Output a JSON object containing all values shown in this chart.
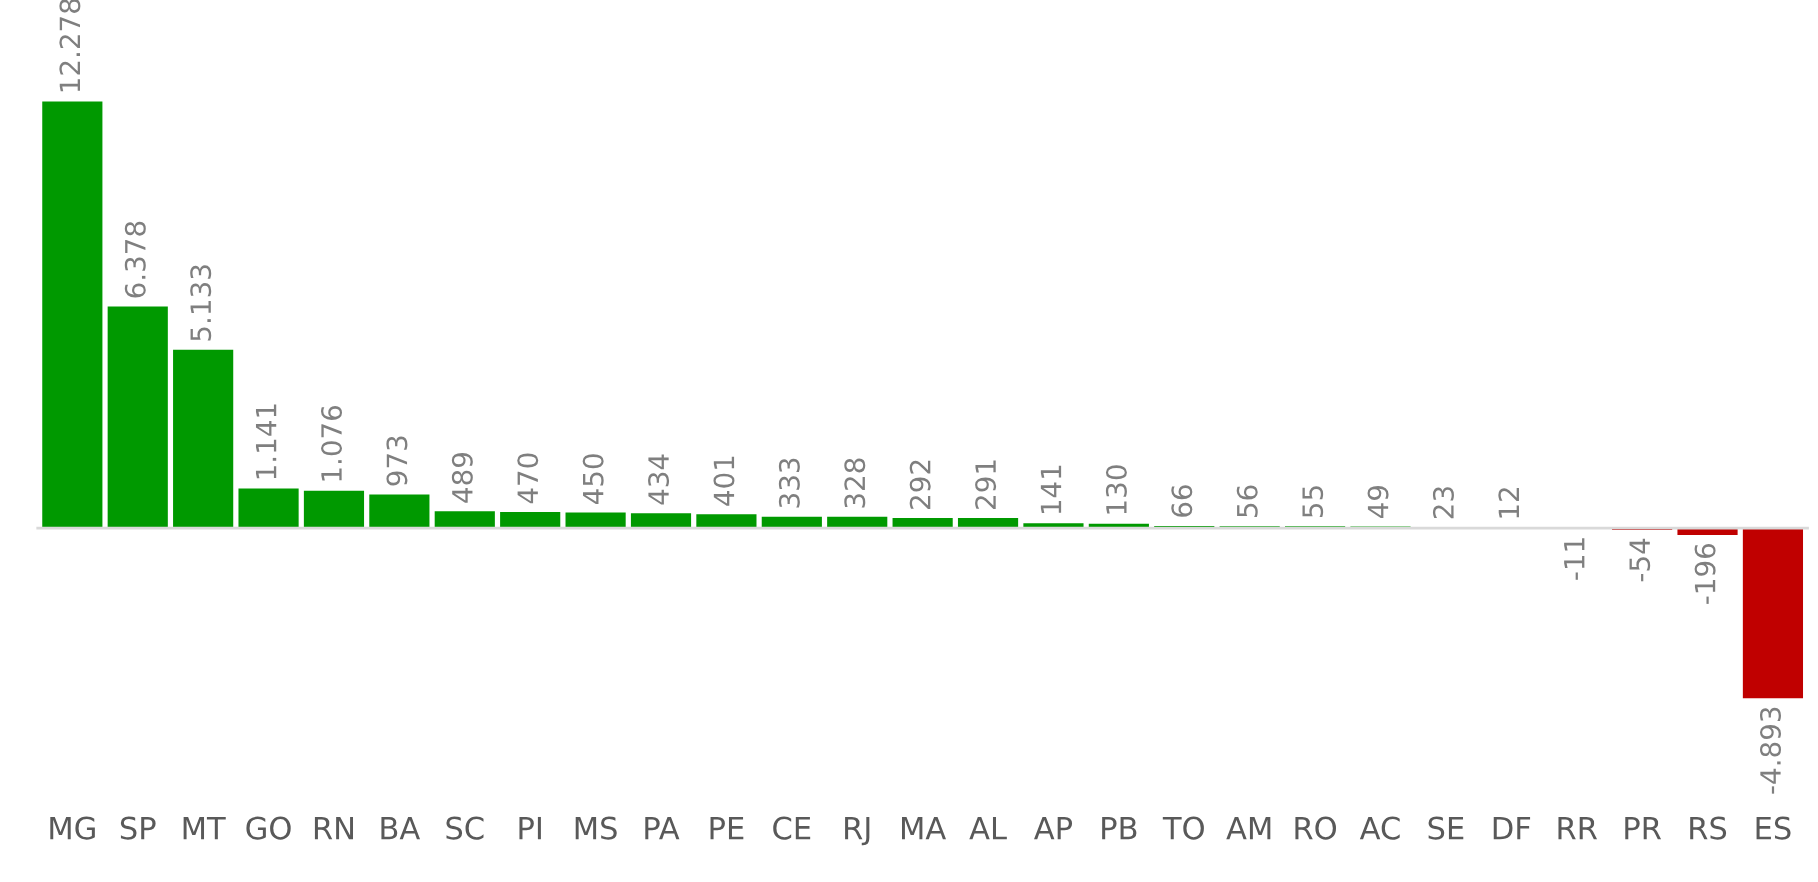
{
  "chart_data": {
    "type": "bar",
    "categories": [
      "MG",
      "SP",
      "MT",
      "GO",
      "RN",
      "BA",
      "SC",
      "PI",
      "MS",
      "PA",
      "PE",
      "CE",
      "RJ",
      "MA",
      "AL",
      "AP",
      "PB",
      "TO",
      "AM",
      "RO",
      "AC",
      "SE",
      "DF",
      "RR",
      "PR",
      "RS",
      "ES"
    ],
    "values": [
      12278,
      6378,
      5133,
      1141,
      1076,
      973,
      489,
      470,
      450,
      434,
      401,
      333,
      328,
      292,
      291,
      141,
      130,
      66,
      56,
      55,
      49,
      23,
      12,
      -11,
      -54,
      -196,
      -4893
    ],
    "value_labels": [
      "12.278",
      "6.378",
      "5.133",
      "1.141",
      "1.076",
      "973",
      "489",
      "470",
      "450",
      "434",
      "401",
      "333",
      "328",
      "292",
      "291",
      "141",
      "130",
      "66",
      "56",
      "55",
      "49",
      "23",
      "12",
      "-11",
      "-54",
      "-196",
      "-4.893"
    ],
    "colors": [
      "#009900",
      "#009900",
      "#009900",
      "#009900",
      "#009900",
      "#009900",
      "#009900",
      "#009900",
      "#009900",
      "#009900",
      "#009900",
      "#009900",
      "#009900",
      "#009900",
      "#009900",
      "#009900",
      "#009900",
      "#009900",
      "#009900",
      "#009900",
      "#009900",
      "#009900",
      "#009900",
      "#c00000",
      "#c00000",
      "#c00000",
      "#c00000"
    ],
    "grid": false,
    "legend": false
  }
}
